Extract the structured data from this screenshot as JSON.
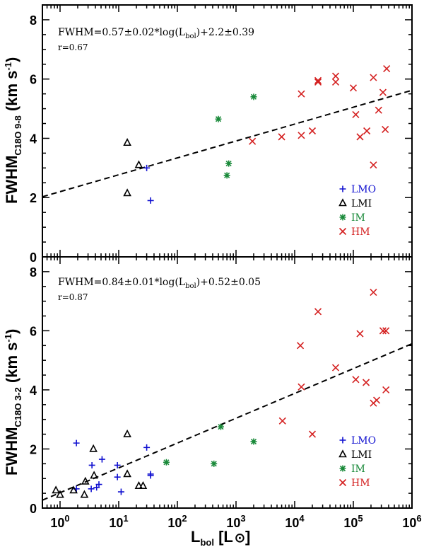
{
  "figure": {
    "x_tick_labels": [
      "10^0",
      "10^1",
      "10^2",
      "10^3",
      "10^4",
      "10^5",
      "10^6"
    ],
    "xlabel": "L_bol [L_sun]",
    "xlabel_main": "L",
    "xlabel_sub": "bol",
    "xlabel_unit_open": " [L",
    "xlabel_unit_close": "]"
  },
  "colors": {
    "LMO": "#1010d0",
    "LMI": "#000000",
    "IM": "#1a8a3a",
    "HM": "#d42020"
  },
  "chart_data": [
    {
      "type": "scatter",
      "title": "",
      "xscale": "log",
      "xlim": [
        0.5,
        1000000
      ],
      "ylim": [
        0,
        8.5
      ],
      "y_ticks": [
        0,
        2,
        4,
        6,
        8
      ],
      "ylabel": "FWHM_C18O 9-8 (km s-1)",
      "ylabel_main": "FWHM",
      "ylabel_sub": "C18O 9-8",
      "ylabel_unit": " (km s",
      "ylabel_unit_exp": "-1",
      "ylabel_unit_close": ")",
      "fit_equation": "FWHM=0.57±0.02*log(L_bol)+2.2±0.39",
      "fit_eq_pre": "FWHM=0.57±0.02*log(L",
      "fit_eq_sub": "bol",
      "fit_eq_post": ")+2.2±0.39",
      "correlation": "r=0.67",
      "fit": {
        "slope": 0.57,
        "intercept": 2.2
      },
      "legend": {
        "position": "bottom-right",
        "entries": [
          "LMO",
          "LMI",
          "IM",
          "HM"
        ]
      },
      "series": [
        {
          "name": "LMO",
          "marker": "plus",
          "points": [
            [
              30,
              3.0
            ],
            [
              35,
              1.9
            ]
          ]
        },
        {
          "name": "LMI",
          "marker": "triangle",
          "points": [
            [
              14,
              3.85
            ],
            [
              14,
              2.15
            ],
            [
              22,
              3.1
            ]
          ]
        },
        {
          "name": "IM",
          "marker": "asterisk",
          "points": [
            [
              500,
              4.65
            ],
            [
              700,
              2.75
            ],
            [
              750,
              3.15
            ],
            [
              2000,
              5.4
            ]
          ]
        },
        {
          "name": "HM",
          "marker": "cross",
          "points": [
            [
              1900,
              3.9
            ],
            [
              6000,
              4.05
            ],
            [
              13000,
              5.5
            ],
            [
              13000,
              4.1
            ],
            [
              20000,
              4.25
            ],
            [
              25000,
              5.9
            ],
            [
              25000,
              5.95
            ],
            [
              50000,
              6.1
            ],
            [
              50000,
              5.9
            ],
            [
              100000,
              5.7
            ],
            [
              110000,
              4.8
            ],
            [
              130000,
              4.05
            ],
            [
              170000,
              4.25
            ],
            [
              220000,
              6.05
            ],
            [
              220000,
              3.1
            ],
            [
              270000,
              4.95
            ],
            [
              320000,
              5.55
            ],
            [
              350000,
              4.3
            ],
            [
              370000,
              6.35
            ]
          ]
        }
      ]
    },
    {
      "type": "scatter",
      "title": "",
      "xscale": "log",
      "xlim": [
        0.5,
        1000000
      ],
      "ylim": [
        0,
        8.5
      ],
      "y_ticks": [
        0,
        2,
        4,
        6,
        8
      ],
      "ylabel": "FWHM_C18O 3-2 (km s-1)",
      "ylabel_main": "FWHM",
      "ylabel_sub": "C18O 3-2",
      "ylabel_unit": " (km s",
      "ylabel_unit_exp": "-1",
      "ylabel_unit_close": ")",
      "fit_equation": "FWHM=0.84±0.01*log(L_bol)+0.52±0.05",
      "fit_eq_pre": "FWHM=0.84±0.01*log(L",
      "fit_eq_sub": "bol",
      "fit_eq_post": ")+0.52±0.05",
      "correlation": "r=0.87",
      "fit": {
        "slope": 0.84,
        "intercept": 0.52
      },
      "legend": {
        "position": "bottom-right",
        "entries": [
          "LMO",
          "LMI",
          "IM",
          "HM"
        ]
      },
      "series": [
        {
          "name": "LMO",
          "marker": "plus",
          "points": [
            [
              1.9,
              2.2
            ],
            [
              1.9,
              0.65
            ],
            [
              3.4,
              0.65
            ],
            [
              3.5,
              1.45
            ],
            [
              4.2,
              0.7
            ],
            [
              4.6,
              0.8
            ],
            [
              5.2,
              1.65
            ],
            [
              9.5,
              1.45
            ],
            [
              9.5,
              1.05
            ],
            [
              11,
              0.55
            ],
            [
              30,
              2.05
            ],
            [
              35,
              1.15
            ],
            [
              35,
              1.1
            ]
          ]
        },
        {
          "name": "LMI",
          "marker": "triangle",
          "points": [
            [
              0.85,
              0.6
            ],
            [
              1.0,
              0.45
            ],
            [
              1.7,
              0.6
            ],
            [
              2.6,
              0.45
            ],
            [
              2.7,
              0.9
            ],
            [
              3.7,
              2.0
            ],
            [
              3.8,
              1.1
            ],
            [
              14,
              2.5
            ],
            [
              14,
              1.15
            ],
            [
              22,
              0.75
            ],
            [
              26,
              0.75
            ]
          ]
        },
        {
          "name": "IM",
          "marker": "asterisk",
          "points": [
            [
              65,
              1.55
            ],
            [
              420,
              1.5
            ],
            [
              550,
              2.75
            ],
            [
              2000,
              2.25
            ]
          ]
        },
        {
          "name": "HM",
          "marker": "cross",
          "points": [
            [
              6200,
              2.95
            ],
            [
              12500,
              5.5
            ],
            [
              13000,
              4.1
            ],
            [
              20000,
              2.5
            ],
            [
              25000,
              6.65
            ],
            [
              50000,
              4.75
            ],
            [
              110000,
              4.35
            ],
            [
              130000,
              5.9
            ],
            [
              165000,
              4.25
            ],
            [
              220000,
              7.3
            ],
            [
              220000,
              3.55
            ],
            [
              250000,
              3.65
            ],
            [
              320000,
              6.0
            ],
            [
              360000,
              6.0
            ],
            [
              360000,
              4.0
            ]
          ]
        }
      ]
    }
  ]
}
